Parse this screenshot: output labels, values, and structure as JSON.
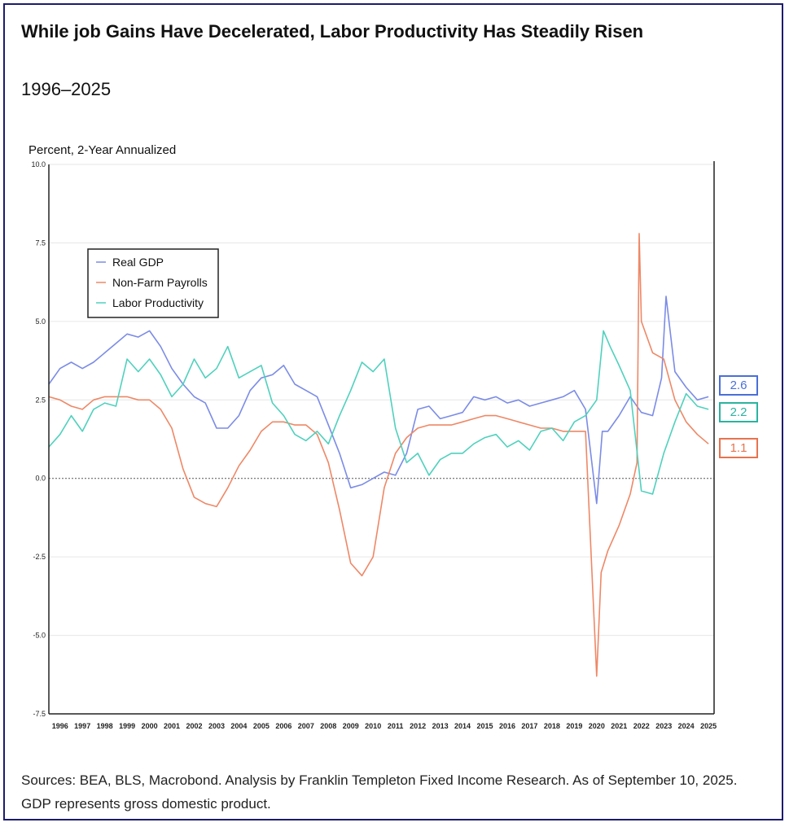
{
  "header": {
    "title": "While job Gains Have Decelerated, Labor Productivity Has Steadily Risen",
    "subtitle": "1996–2025"
  },
  "footer": {
    "source": "Sources: BEA, BLS, Macrobond. Analysis by Franklin Templeton Fixed Income Research. As of September 10, 2025. GDP represents gross domestic product."
  },
  "end_values": {
    "gdp": "2.6",
    "productivity": "2.2",
    "payrolls": "1.1"
  },
  "colors": {
    "gdp": "#7b8ce6",
    "payrolls": "#ee8866",
    "productivity": "#4fd1bd",
    "gdp_box": "#4a6fd8",
    "productivity_box": "#2bb3a0",
    "payrolls_box": "#e8734f"
  },
  "chart_data": {
    "type": "line",
    "ylabel": "Percent, 2-Year Annualized",
    "ylim": [
      -7.5,
      10.0
    ],
    "xlim": [
      1995.5,
      2025.25
    ],
    "yticks": [
      "10.0",
      "7.5",
      "5.0",
      "2.5",
      "0.0",
      "-2.5",
      "-5.0",
      "-7.5"
    ],
    "ytick_values": [
      10,
      7.5,
      5,
      2.5,
      0,
      -2.5,
      -5,
      -7.5
    ],
    "xticks": [
      "1996",
      "1997",
      "1998",
      "1999",
      "2000",
      "2001",
      "2002",
      "2003",
      "2004",
      "2005",
      "2006",
      "2007",
      "2008",
      "2009",
      "2010",
      "2011",
      "2012",
      "2013",
      "2014",
      "2015",
      "2016",
      "2017",
      "2018",
      "2019",
      "2020",
      "2021",
      "2022",
      "2023",
      "2024",
      "2025"
    ],
    "legend": {
      "position": "top-left",
      "entries": [
        "Real GDP",
        "Non-Farm Payrolls",
        "Labor Productivity"
      ]
    },
    "series": [
      {
        "name": "Real GDP",
        "key": "gdp",
        "x": [
          1995.5,
          1996,
          1996.5,
          1997,
          1997.5,
          1998,
          1998.5,
          1999,
          1999.5,
          2000,
          2000.5,
          2001,
          2001.5,
          2002,
          2002.5,
          2003,
          2003.5,
          2004,
          2004.5,
          2005,
          2005.5,
          2006,
          2006.5,
          2007,
          2007.5,
          2008,
          2008.5,
          2009,
          2009.5,
          2010,
          2010.5,
          2011,
          2011.5,
          2012,
          2012.5,
          2013,
          2013.5,
          2014,
          2014.5,
          2015,
          2015.5,
          2016,
          2016.5,
          2017,
          2017.5,
          2018,
          2018.5,
          2019,
          2019.5,
          2020,
          2020.25,
          2020.5,
          2021,
          2021.5,
          2022,
          2022.5,
          2022.9,
          2023.1,
          2023.5,
          2024,
          2024.5,
          2025
        ],
        "values": [
          3.0,
          3.5,
          3.7,
          3.5,
          3.7,
          4.0,
          4.3,
          4.6,
          4.5,
          4.7,
          4.2,
          3.5,
          3.0,
          2.6,
          2.4,
          1.6,
          1.6,
          2.0,
          2.8,
          3.2,
          3.3,
          3.6,
          3.0,
          2.8,
          2.6,
          1.7,
          0.8,
          -0.3,
          -0.2,
          0.0,
          0.2,
          0.1,
          0.8,
          2.2,
          2.3,
          1.9,
          2.0,
          2.1,
          2.6,
          2.5,
          2.6,
          2.4,
          2.5,
          2.3,
          2.4,
          2.5,
          2.6,
          2.8,
          2.2,
          -0.8,
          1.5,
          1.5,
          2.0,
          2.6,
          2.1,
          2.0,
          3.2,
          5.8,
          3.4,
          2.9,
          2.5,
          2.6
        ]
      },
      {
        "name": "Non-Farm Payrolls",
        "key": "payrolls",
        "x": [
          1995.5,
          1996,
          1996.5,
          1997,
          1997.5,
          1998,
          1998.5,
          1999,
          1999.5,
          2000,
          2000.5,
          2001,
          2001.5,
          2002,
          2002.5,
          2003,
          2003.5,
          2004,
          2004.5,
          2005,
          2005.5,
          2006,
          2006.5,
          2007,
          2007.5,
          2008,
          2008.5,
          2009,
          2009.5,
          2010,
          2010.5,
          2011,
          2011.5,
          2012,
          2012.5,
          2013,
          2013.5,
          2014,
          2014.5,
          2015,
          2015.5,
          2016,
          2016.5,
          2017,
          2017.5,
          2018,
          2018.5,
          2019,
          2019.5,
          2020,
          2020.2,
          2020.5,
          2021,
          2021.5,
          2021.8,
          2021.9,
          2022,
          2022.5,
          2023,
          2023.5,
          2024,
          2024.5,
          2025
        ],
        "values": [
          2.6,
          2.5,
          2.3,
          2.2,
          2.5,
          2.6,
          2.6,
          2.6,
          2.5,
          2.5,
          2.2,
          1.6,
          0.3,
          -0.6,
          -0.8,
          -0.9,
          -0.3,
          0.4,
          0.9,
          1.5,
          1.8,
          1.8,
          1.7,
          1.7,
          1.4,
          0.5,
          -1.0,
          -2.7,
          -3.1,
          -2.5,
          -0.3,
          0.8,
          1.3,
          1.6,
          1.7,
          1.7,
          1.7,
          1.8,
          1.9,
          2.0,
          2.0,
          1.9,
          1.8,
          1.7,
          1.6,
          1.6,
          1.5,
          1.5,
          1.5,
          -6.3,
          -3.0,
          -2.3,
          -1.5,
          -0.5,
          0.5,
          7.8,
          5.0,
          4.0,
          3.8,
          2.5,
          1.8,
          1.4,
          1.1
        ]
      },
      {
        "name": "Labor Productivity",
        "key": "productivity",
        "x": [
          1995.5,
          1996,
          1996.5,
          1997,
          1997.5,
          1998,
          1998.5,
          1999,
          1999.5,
          2000,
          2000.5,
          2001,
          2001.5,
          2002,
          2002.5,
          2003,
          2003.5,
          2004,
          2004.5,
          2005,
          2005.5,
          2006,
          2006.5,
          2007,
          2007.5,
          2008,
          2008.5,
          2009,
          2009.5,
          2010,
          2010.5,
          2011,
          2011.5,
          2012,
          2012.5,
          2013,
          2013.5,
          2014,
          2014.5,
          2015,
          2015.5,
          2016,
          2016.5,
          2017,
          2017.5,
          2018,
          2018.5,
          2019,
          2019.5,
          2020,
          2020.3,
          2020.6,
          2021,
          2021.5,
          2022,
          2022.5,
          2023,
          2023.5,
          2024,
          2024.5,
          2025
        ],
        "values": [
          1.0,
          1.4,
          2.0,
          1.5,
          2.2,
          2.4,
          2.3,
          3.8,
          3.4,
          3.8,
          3.3,
          2.6,
          3.0,
          3.8,
          3.2,
          3.5,
          4.2,
          3.2,
          3.4,
          3.6,
          2.4,
          2.0,
          1.4,
          1.2,
          1.5,
          1.1,
          2.0,
          2.8,
          3.7,
          3.4,
          3.8,
          1.6,
          0.5,
          0.8,
          0.1,
          0.6,
          0.8,
          0.8,
          1.1,
          1.3,
          1.4,
          1.0,
          1.2,
          0.9,
          1.5,
          1.6,
          1.2,
          1.8,
          2.0,
          2.5,
          4.7,
          4.2,
          3.6,
          2.8,
          -0.4,
          -0.5,
          0.8,
          1.8,
          2.7,
          2.3,
          2.2
        ]
      }
    ]
  }
}
